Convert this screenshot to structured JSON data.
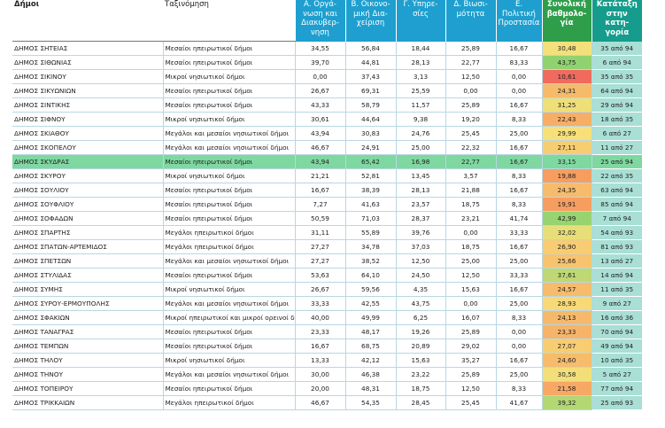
{
  "table": {
    "header": [
      "Δήμοι",
      "Ταξινόμηση",
      "Α. Οργά-\nνωση και\nΔιακυβερ-\nνηση",
      "Β. Οικονο-\nμική Δια-\nχείριση",
      "Γ. Υπηρε-\nσίες",
      "Δ. Βιωσι-\nμότητα",
      "Ε. Πολιτική\nΠροστασία",
      "Συνολική\nβαθμολο-\nγία",
      "Κατάταξη\nστην κατη-\nγορία"
    ],
    "rows": [
      [
        "ΔΗΜΟΣ ΣΗΤΕΙΑΣ",
        "Μεσαίοι ηπειρωτικοί δήμοι",
        "34,55",
        "56,84",
        "18,44",
        "25,89",
        "16,67",
        "30,48",
        "35 από 94"
      ],
      [
        "ΔΗΜΟΣ ΣΙΘΩΝΙΑΣ",
        "Μεσαίοι ηπειρωτικοί δήμοι",
        "39,70",
        "44,81",
        "28,13",
        "22,77",
        "83,33",
        "43,75",
        "6 από 94"
      ],
      [
        "ΔΗΜΟΣ ΣΙΚΙΝΟΥ",
        "Μικροί νησιωτικοί δήμοι",
        "0,00",
        "37,43",
        "3,13",
        "12,50",
        "0,00",
        "10,61",
        "35 από 35"
      ],
      [
        "ΔΗΜΟΣ ΣΙΚΥΩΝΙΩΝ",
        "Μεσαίοι ηπειρωτικοί δήμοι",
        "26,67",
        "69,31",
        "25,59",
        "0,00",
        "0,00",
        "24,31",
        "64 από 94"
      ],
      [
        "ΔΗΜΟΣ ΣΙΝΤΙΚΗΣ",
        "Μεσαίοι ηπειρωτικοί δήμοι",
        "43,33",
        "58,79",
        "11,57",
        "25,89",
        "16,67",
        "31,25",
        "29 από 94"
      ],
      [
        "ΔΗΜΟΣ ΣΙΦΝΟΥ",
        "Μικροί νησιωτικοί δήμοι",
        "30,61",
        "44,64",
        "9,38",
        "19,20",
        "8,33",
        "22,43",
        "18 από 35"
      ],
      [
        "ΔΗΜΟΣ ΣΚΙΑΘΟΥ",
        "Μεγάλοι και μεσαίοι νησιωτικοί δήμοι",
        "43,94",
        "30,83",
        "24,76",
        "25,45",
        "25,00",
        "29,99",
        "6 από 27"
      ],
      [
        "ΔΗΜΟΣ ΣΚΟΠΕΛΟΥ",
        "Μεγάλοι και μεσαίοι νησιωτικοί δήμοι",
        "46,67",
        "24,91",
        "25,00",
        "22,32",
        "16,67",
        "27,11",
        "11 από 27"
      ],
      [
        "ΔΗΜΟΣ ΣΚΥΔΡΑΣ",
        "Μεσαίοι ηπειρωτικοί δήμοι",
        "43,94",
        "65,42",
        "16,98",
        "22,77",
        "16,67",
        "33,15",
        "25 από 94"
      ],
      [
        "ΔΗΜΟΣ ΣΚΥΡΟΥ",
        "Μικροί νησιωτικοί δήμοι",
        "21,21",
        "52,81",
        "13,45",
        "3,57",
        "8,33",
        "19,88",
        "22 από 35"
      ],
      [
        "ΔΗΜΟΣ ΣΟΥΛΙΟΥ",
        "Μεσαίοι ηπειρωτικοί δήμοι",
        "16,67",
        "38,39",
        "28,13",
        "21,88",
        "16,67",
        "24,35",
        "63 από 94"
      ],
      [
        "ΔΗΜΟΣ ΣΟΥΦΛΙΟΥ",
        "Μεσαίοι ηπειρωτικοί δήμοι",
        "7,27",
        "41,63",
        "23,57",
        "18,75",
        "8,33",
        "19,91",
        "85 από 94"
      ],
      [
        "ΔΗΜΟΣ ΣΟΦΑΔΩΝ",
        "Μεσαίοι ηπειρωτικοί δήμοι",
        "50,59",
        "71,03",
        "28,37",
        "23,21",
        "41,74",
        "42,99",
        "7 από 94"
      ],
      [
        "ΔΗΜΟΣ ΣΠΑΡΤΗΣ",
        "Μεγάλοι ηπειρωτικοί δήμοι",
        "31,11",
        "55,89",
        "39,76",
        "0,00",
        "33,33",
        "32,02",
        "54 από 93"
      ],
      [
        "ΔΗΜΟΣ ΣΠΑΤΩΝ-ΑΡΤΕΜΙΔΟΣ",
        "Μεγάλοι ηπειρωτικοί δήμοι",
        "27,27",
        "34,78",
        "37,03",
        "18,75",
        "16,67",
        "26,90",
        "81 από 93"
      ],
      [
        "ΔΗΜΟΣ ΣΠΕΤΣΩΝ",
        "Μεγάλοι και μεσαίοι νησιωτικοί δήμοι",
        "27,27",
        "38,52",
        "12,50",
        "25,00",
        "25,00",
        "25,66",
        "13 από 27"
      ],
      [
        "ΔΗΜΟΣ ΣΤΥΛΙΔΑΣ",
        "Μεσαίοι ηπειρωτικοί δήμοι",
        "53,63",
        "64,10",
        "24,50",
        "12,50",
        "33,33",
        "37,61",
        "14 από 94"
      ],
      [
        "ΔΗΜΟΣ ΣΥΜΗΣ",
        "Μικροί νησιωτικοί δήμοι",
        "26,67",
        "59,56",
        "4,35",
        "15,63",
        "16,67",
        "24,57",
        "11 από 35"
      ],
      [
        "ΔΗΜΟΣ ΣΥΡΟΥ-ΕΡΜΟΥΠΟΛΗΣ",
        "Μεγάλοι και μεσαίοι νησιωτικοί δήμοι",
        "33,33",
        "42,55",
        "43,75",
        "0,00",
        "25,00",
        "28,93",
        "9 από 27"
      ],
      [
        "ΔΗΜΟΣ ΣΦΑΚΙΩΝ",
        "Μικροί ηπειρωτικοί και μικροί ορεινοί δήμοι",
        "40,00",
        "49,99",
        "6,25",
        "16,07",
        "8,33",
        "24,13",
        "16 από 36"
      ],
      [
        "ΔΗΜΟΣ ΤΑΝΑΓΡΑΣ",
        "Μεσαίοι ηπειρωτικοί δήμοι",
        "23,33",
        "48,17",
        "19,26",
        "25,89",
        "0,00",
        "23,33",
        "70 από 94"
      ],
      [
        "ΔΗΜΟΣ ΤΕΜΠΩΝ",
        "Μεσαίοι ηπειρωτικοί δήμοι",
        "16,67",
        "68,75",
        "20,89",
        "29,02",
        "0,00",
        "27,07",
        "49 από 94"
      ],
      [
        "ΔΗΜΟΣ ΤΗΛΟΥ",
        "Μικροί νησιωτικοί δήμοι",
        "13,33",
        "42,12",
        "15,63",
        "35,27",
        "16,67",
        "24,60",
        "10 από 35"
      ],
      [
        "ΔΗΜΟΣ ΤΗΝΟΥ",
        "Μεγάλοι και μεσαίοι νησιωτικοί δήμοι",
        "30,00",
        "46,38",
        "23,22",
        "25,89",
        "25,00",
        "30,58",
        "5 από 27"
      ],
      [
        "ΔΗΜΟΣ ΤΟΠΕΙΡΟΥ",
        "Μεσαίοι ηπειρωτικοί δήμοι",
        "20,00",
        "48,31",
        "18,75",
        "12,50",
        "8,33",
        "21,58",
        "77 από 94"
      ],
      [
        "ΔΗΜΟΣ ΤΡΙΚΚΑΙΩΝ",
        "Μεγάλοι ηπειρωτικοί δήμοι",
        "46,67",
        "54,35",
        "28,45",
        "25,45",
        "41,67",
        "39,32",
        "25 από 93"
      ]
    ]
  }
}
